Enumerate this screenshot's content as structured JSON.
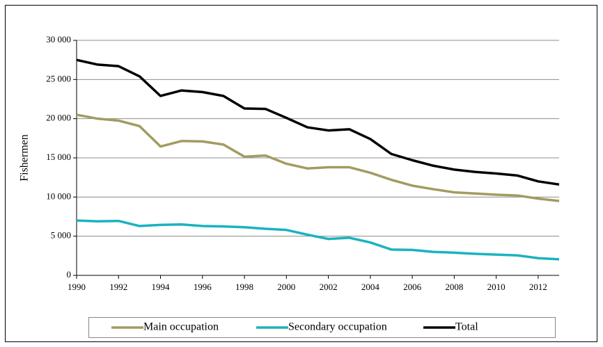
{
  "chart_data": {
    "type": "line",
    "y_label": "Fishermen",
    "x": [
      1990,
      1991,
      1992,
      1993,
      1994,
      1995,
      1996,
      1997,
      1998,
      1999,
      2000,
      2001,
      2002,
      2003,
      2004,
      2005,
      2006,
      2007,
      2008,
      2009,
      2010,
      2011,
      2012,
      2013
    ],
    "series": [
      {
        "name": "Main occupation",
        "color": "#a39b5f",
        "values": [
          20500,
          20000,
          19750,
          19050,
          16450,
          17150,
          17100,
          16700,
          15150,
          15300,
          14250,
          13650,
          13800,
          13800,
          13100,
          12200,
          11450,
          11000,
          10600,
          10450,
          10300,
          10200,
          9800,
          9500
        ]
      },
      {
        "name": "Secondary occupation",
        "color": "#1bb2c0",
        "values": [
          7000,
          6900,
          6950,
          6300,
          6450,
          6500,
          6300,
          6250,
          6150,
          5950,
          5800,
          5200,
          4650,
          4800,
          4200,
          3300,
          3250,
          3000,
          2900,
          2750,
          2650,
          2550,
          2200,
          2050
        ]
      },
      {
        "name": "Total",
        "color": "#000000",
        "values": [
          27500,
          26900,
          26700,
          25400,
          22900,
          23600,
          23400,
          22900,
          21300,
          21250,
          20100,
          18900,
          18500,
          18650,
          17400,
          15500,
          14700,
          14000,
          13500,
          13200,
          13000,
          12750,
          12000,
          11600
        ]
      }
    ],
    "xlim": [
      1990,
      2013
    ],
    "xticks": [
      1990,
      1992,
      1994,
      1996,
      1998,
      2000,
      2002,
      2004,
      2006,
      2008,
      2010,
      2012
    ],
    "ylim": [
      0,
      30000
    ],
    "yticks": [
      0,
      {
        "value": 5000,
        "label": "5 000"
      },
      {
        "value": 10000,
        "label": "10 000"
      },
      {
        "value": 15000,
        "label": "15 000"
      },
      {
        "value": 20000,
        "label": "20 000"
      },
      {
        "value": 25000,
        "label": "25 000"
      },
      {
        "value": 30000,
        "label": "30 000"
      }
    ],
    "grid": true,
    "legend": "bottom"
  }
}
